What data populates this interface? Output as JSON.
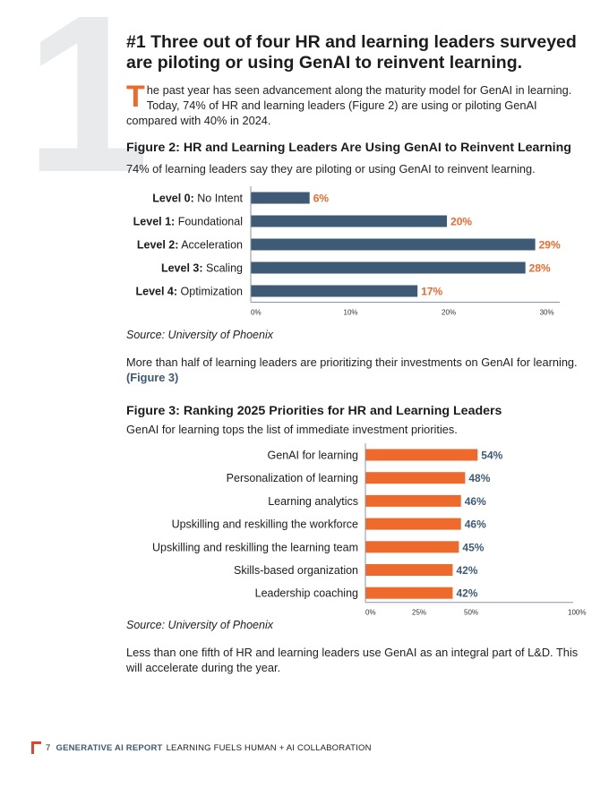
{
  "section_number": "1",
  "headline": "#1 Three out of four HR and learning leaders surveyed are piloting or using GenAI to reinvent learning.",
  "intro": {
    "dropcap": "T",
    "text": "he past year has seen advancement along the maturity model for GenAI in learning. Today, 74% of HR and learning leaders (Figure 2) are using or piloting GenAI compared with 40% in 2024."
  },
  "figure2": {
    "title": "Figure 2: HR and Learning Leaders Are Using GenAI to Reinvent Learning",
    "subtitle": "74% of learning leaders say they are piloting or using GenAI to reinvent learning.",
    "source": "Source: University of Phoenix"
  },
  "para1": {
    "text": "More than half of learning leaders are prioritizing their investments on GenAI for learning. ",
    "link": "(Figure 3)"
  },
  "figure3": {
    "title": "Figure 3: Ranking 2025 Priorities for HR and Learning Leaders",
    "subtitle": "GenAI for learning tops the list of immediate investment priorities.",
    "source": "Source: University of Phoenix"
  },
  "para2": {
    "text": "Less than one fifth of HR and learning leaders use GenAI as an integral part of L&D. This will accelerate during the year."
  },
  "footer": {
    "page_number": "7",
    "report_name": "GENERATIVE AI REPORT",
    "subtitle": "LEARNING FUELS HUMAN + AI COLLABORATION"
  },
  "colors": {
    "navy": "#3e5a75",
    "orange": "#ee6a2c",
    "axis": "#8a96a3"
  },
  "chart_data": [
    {
      "type": "bar",
      "orientation": "horizontal",
      "title": "Figure 2: HR and Learning Leaders Are Using GenAI to Reinvent Learning",
      "categories": [
        {
          "bold": "Level 0:",
          "rest": " No Intent"
        },
        {
          "bold": "Level 1:",
          "rest": " Foundational"
        },
        {
          "bold": "Level 2:",
          "rest": " Acceleration"
        },
        {
          "bold": "Level 3:",
          "rest": " Scaling"
        },
        {
          "bold": "Level 4:",
          "rest": " Optimization"
        }
      ],
      "values": [
        6,
        20,
        29,
        28,
        17
      ],
      "value_labels": [
        "6%",
        "20%",
        "29%",
        "28%",
        "17%"
      ],
      "xlim": [
        0,
        31.5
      ],
      "ticks": [
        0,
        10,
        20,
        30
      ],
      "tick_labels": [
        "0%",
        "10%",
        "20%",
        "30%"
      ],
      "bar_color": "#3e5a75",
      "label_color": "#ee6a2c"
    },
    {
      "type": "bar",
      "orientation": "horizontal",
      "title": "Figure 3: Ranking 2025 Priorities for HR and Learning Leaders",
      "categories": [
        "GenAI for learning",
        "Personalization of learning",
        "Learning analytics",
        "Upskilling and reskilling the workforce",
        "Upskilling and reskilling the learning team",
        "Skills-based organization",
        "Leadership coaching"
      ],
      "values": [
        54,
        48,
        46,
        46,
        45,
        42,
        42
      ],
      "value_labels": [
        "54%",
        "48%",
        "46%",
        "46%",
        "45%",
        "42%",
        "42%"
      ],
      "xlim": [
        0,
        100
      ],
      "ticks": [
        0,
        25,
        50,
        100
      ],
      "tick_labels": [
        "0%",
        "25%",
        "50%",
        "100%"
      ],
      "tick_positions": [
        0,
        25,
        50,
        100
      ],
      "bar_color": "#ee6a2c",
      "label_color": "#3e5a75"
    }
  ]
}
